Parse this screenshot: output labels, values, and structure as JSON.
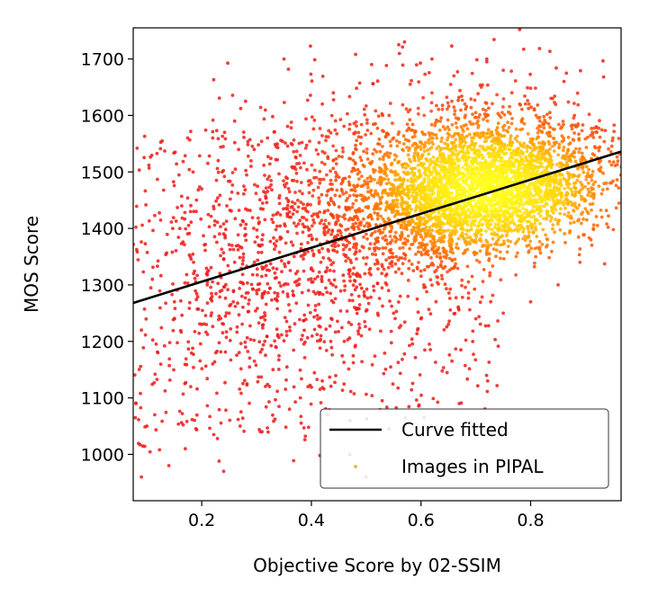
{
  "chart_data": {
    "type": "scatter",
    "title": "",
    "xlabel": "Objective Score by 02-SSIM",
    "ylabel": "MOS Score",
    "xlim": [
      0.075,
      0.965
    ],
    "ylim": [
      918,
      1755
    ],
    "x_ticks": [
      {
        "value": 0.2,
        "label": "0.2"
      },
      {
        "value": 0.4,
        "label": "0.4"
      },
      {
        "value": 0.6,
        "label": "0.6"
      },
      {
        "value": 0.8,
        "label": "0.8"
      }
    ],
    "y_ticks": [
      {
        "value": 1000,
        "label": "1000"
      },
      {
        "value": 1100,
        "label": "1100"
      },
      {
        "value": 1200,
        "label": "1200"
      },
      {
        "value": 1300,
        "label": "1300"
      },
      {
        "value": 1400,
        "label": "1400"
      },
      {
        "value": 1500,
        "label": "1500"
      },
      {
        "value": 1600,
        "label": "1600"
      },
      {
        "value": 1700,
        "label": "1700"
      }
    ],
    "grid": false,
    "legend_position": "bottom-right",
    "density_colormap": [
      "#ee1a1a",
      "#ff6a00",
      "#ffd000",
      "#ffff20"
    ],
    "series": [
      {
        "name": "Curve fitted",
        "kind": "line",
        "color": "#000000",
        "x": [
          0.075,
          0.965
        ],
        "y": [
          1268,
          1536
        ]
      },
      {
        "name": "Images in PIPAL",
        "kind": "scatter",
        "legend_marker_color": "#f5a623",
        "distribution": {
          "count": 5200,
          "dense_core": {
            "x_center": 0.72,
            "y_center": 1470,
            "x_spread": 0.11,
            "y_spread": 55
          },
          "x_range": [
            0.075,
            0.965
          ],
          "y_range": [
            930,
            1750
          ]
        },
        "points": [
          [
            0.71,
            1650
          ],
          [
            0.72,
            1600
          ],
          [
            0.74,
            1570
          ],
          [
            0.7,
            1605
          ],
          [
            0.68,
            1620
          ],
          [
            0.63,
            1590
          ],
          [
            0.78,
            1620
          ],
          [
            0.81,
            1600
          ],
          [
            0.55,
            1560
          ],
          [
            0.86,
            1560
          ],
          [
            0.9,
            1520
          ],
          [
            0.52,
            1440
          ],
          [
            0.48,
            1420
          ],
          [
            0.6,
            1370
          ],
          [
            0.66,
            1330
          ],
          [
            0.45,
            1380
          ],
          [
            0.4,
            1330
          ],
          [
            0.35,
            1300
          ],
          [
            0.3,
            1290
          ],
          [
            0.25,
            1250
          ],
          [
            0.2,
            1230
          ],
          [
            0.15,
            1240
          ],
          [
            0.12,
            1180
          ],
          [
            0.18,
            1120
          ],
          [
            0.22,
            1160
          ],
          [
            0.28,
            1190
          ],
          [
            0.33,
            1150
          ],
          [
            0.38,
            1100
          ],
          [
            0.43,
            1070
          ],
          [
            0.47,
            1000
          ],
          [
            0.5,
            960
          ],
          [
            0.27,
            1050
          ],
          [
            0.17,
            1010
          ],
          [
            0.1,
            1050
          ],
          [
            0.14,
            980
          ],
          [
            0.24,
            970
          ],
          [
            0.31,
            1040
          ],
          [
            0.36,
            1080
          ],
          [
            0.42,
            1130
          ],
          [
            0.46,
            1200
          ],
          [
            0.21,
            1300
          ],
          [
            0.26,
            1340
          ],
          [
            0.31,
            1380
          ],
          [
            0.36,
            1420
          ],
          [
            0.4,
            1480
          ],
          [
            0.44,
            1520
          ],
          [
            0.49,
            1550
          ],
          [
            0.53,
            1600
          ],
          [
            0.58,
            1610
          ],
          [
            0.62,
            1640
          ],
          [
            0.66,
            1670
          ],
          [
            0.72,
            1700
          ],
          [
            0.75,
            1680
          ],
          [
            0.8,
            1648
          ],
          [
            0.84,
            1630
          ],
          [
            0.88,
            1600
          ],
          [
            0.92,
            1580
          ],
          [
            0.95,
            1560
          ],
          [
            0.94,
            1470
          ],
          [
            0.93,
            1420
          ],
          [
            0.91,
            1380
          ],
          [
            0.89,
            1340
          ],
          [
            0.85,
            1300
          ],
          [
            0.8,
            1270
          ],
          [
            0.75,
            1250
          ],
          [
            0.7,
            1240
          ],
          [
            0.65,
            1230
          ],
          [
            0.6,
            1240
          ],
          [
            0.55,
            1250
          ],
          [
            0.35,
            1700
          ],
          [
            0.22,
            1560
          ],
          [
            0.23,
            1520
          ],
          [
            0.2,
            1470
          ],
          [
            0.19,
            1430
          ],
          [
            0.16,
            1400
          ],
          [
            0.11,
            1310
          ],
          [
            0.09,
            1220
          ],
          [
            0.08,
            1090
          ],
          [
            0.09,
            960
          ],
          [
            0.57,
            1730
          ],
          [
            0.78,
            1752
          ],
          [
            0.72,
            1695
          ],
          [
            0.62,
            1700
          ],
          [
            0.51,
            1690
          ],
          [
            0.44,
            1640
          ],
          [
            0.42,
            1620
          ],
          [
            0.28,
            1625
          ],
          [
            0.26,
            1590
          ],
          [
            0.32,
            1560
          ],
          [
            0.29,
            1510
          ]
        ]
      }
    ]
  }
}
